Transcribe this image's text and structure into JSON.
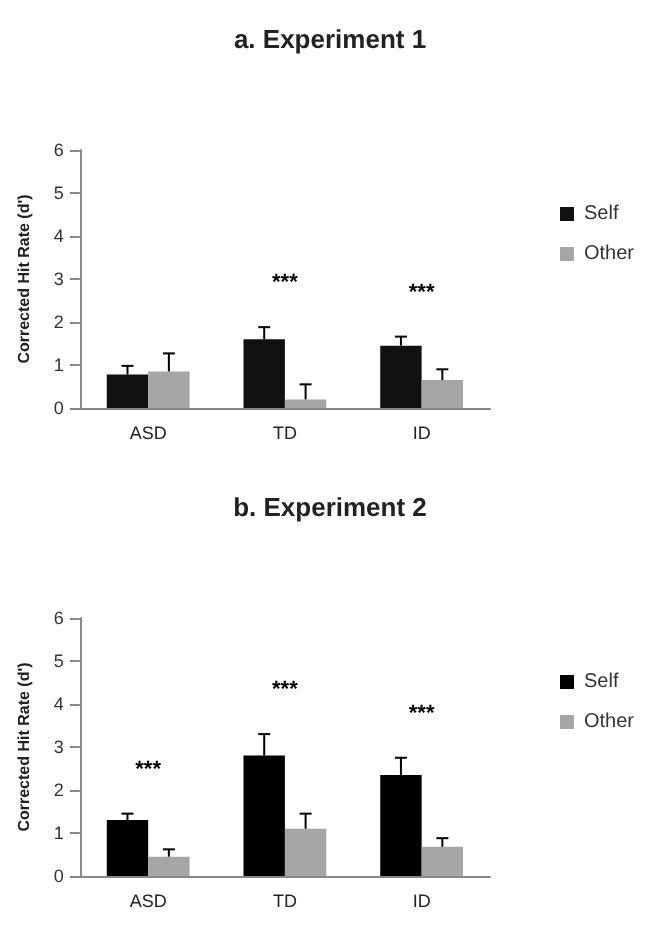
{
  "chart_data": [
    {
      "type": "bar",
      "title": "a. Experiment 1",
      "ylabel": "Corrected Hit Rate (d')",
      "categories": [
        "ASD",
        "TD",
        "ID"
      ],
      "series": [
        {
          "name": "Self",
          "color": "#111111",
          "values": [
            0.78,
            1.6,
            1.45
          ],
          "errors": [
            [
              0.78,
              0.98
            ],
            [
              1.6,
              1.88
            ],
            [
              1.45,
              1.66
            ]
          ]
        },
        {
          "name": "Other",
          "color": "#a6a6a6",
          "values": [
            0.85,
            0.2,
            0.65
          ],
          "errors": [
            [
              0.85,
              1.27
            ],
            [
              0.2,
              0.55
            ],
            [
              0.65,
              0.9
            ]
          ]
        }
      ],
      "ylim": [
        0,
        6
      ],
      "yticks": [
        0,
        1,
        2,
        3,
        4,
        5,
        6
      ],
      "grid": false,
      "legend": "right",
      "annotations": [
        "***",
        "***"
      ]
    },
    {
      "type": "bar",
      "title": "b. Experiment 2",
      "ylabel": "Corrected Hit Rate (d')",
      "categories": [
        "ASD",
        "TD",
        "ID"
      ],
      "series": [
        {
          "name": "Self",
          "color": "#000000",
          "values": [
            1.3,
            2.8,
            2.35
          ],
          "errors": [
            [
              1.3,
              1.45
            ],
            [
              2.8,
              3.3
            ],
            [
              2.35,
              2.75
            ]
          ]
        },
        {
          "name": "Other",
          "color": "#a6a6a6",
          "values": [
            0.45,
            1.1,
            0.68
          ],
          "errors": [
            [
              0.45,
              0.62
            ],
            [
              1.1,
              1.45
            ],
            [
              0.68,
              0.88
            ]
          ]
        }
      ],
      "ylim": [
        0,
        6
      ],
      "yticks": [
        0,
        1,
        2,
        3,
        4,
        5,
        6
      ],
      "grid": false,
      "legend": "right",
      "annotations": [
        "***",
        "***",
        "***"
      ]
    }
  ]
}
